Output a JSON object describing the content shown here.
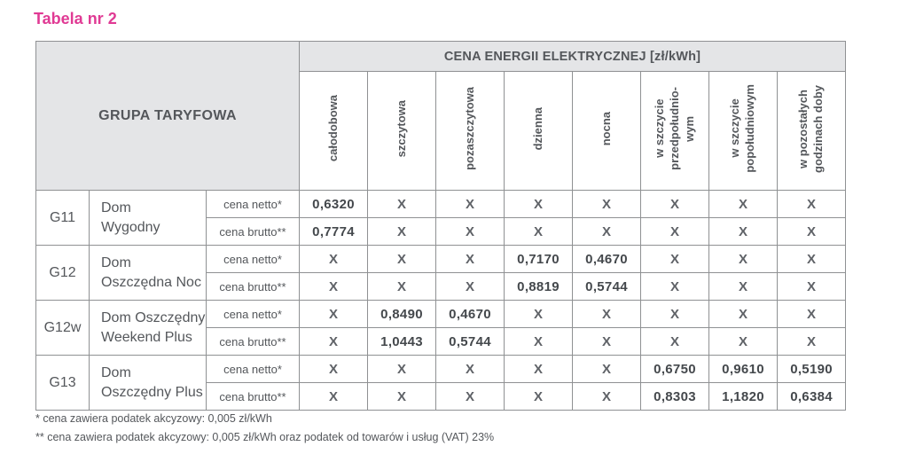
{
  "page": {
    "title": "Tabela nr 2"
  },
  "table": {
    "group_header": "GRUPA TARYFOWA",
    "price_header": "CENA ENERGII ELEKTRYCZNEJ [zł/kWh]",
    "columns": [
      "całodobowa",
      "szczytowa",
      "pozaszczytowa",
      "dzienna",
      "nocna",
      "w szczycie\nprzedpołudnio-\nwym",
      "w szczycie\npopołudniowym",
      "w pozostałych\ngodzinach doby"
    ],
    "groups": [
      {
        "code": "G11",
        "name": "Dom\nWygodny",
        "rows": [
          {
            "label": "cena netto*",
            "values": [
              "0,6320",
              "X",
              "X",
              "X",
              "X",
              "X",
              "X",
              "X"
            ]
          },
          {
            "label": "cena brutto**",
            "values": [
              "0,7774",
              "X",
              "X",
              "X",
              "X",
              "X",
              "X",
              "X"
            ]
          }
        ]
      },
      {
        "code": "G12",
        "name": "Dom\nOszczędna Noc",
        "rows": [
          {
            "label": "cena netto*",
            "values": [
              "X",
              "X",
              "X",
              "0,7170",
              "0,4670",
              "X",
              "X",
              "X"
            ]
          },
          {
            "label": "cena brutto**",
            "values": [
              "X",
              "X",
              "X",
              "0,8819",
              "0,5744",
              "X",
              "X",
              "X"
            ]
          }
        ]
      },
      {
        "code": "G12w",
        "name": "Dom Oszczędny\nWeekend Plus",
        "rows": [
          {
            "label": "cena netto*",
            "values": [
              "X",
              "0,8490",
              "0,4670",
              "X",
              "X",
              "X",
              "X",
              "X"
            ]
          },
          {
            "label": "cena brutto**",
            "values": [
              "X",
              "1,0443",
              "0,5744",
              "X",
              "X",
              "X",
              "X",
              "X"
            ]
          }
        ]
      },
      {
        "code": "G13",
        "name": "Dom\nOszczędny Plus",
        "rows": [
          {
            "label": "cena netto*",
            "values": [
              "X",
              "X",
              "X",
              "X",
              "X",
              "0,6750",
              "0,9610",
              "0,5190"
            ]
          },
          {
            "label": "cena brutto**",
            "values": [
              "X",
              "X",
              "X",
              "X",
              "X",
              "0,8303",
              "1,1820",
              "0,6384"
            ]
          }
        ]
      }
    ]
  },
  "footnotes": [
    "* cena zawiera podatek akcyzowy: 0,005 zł/kWh",
    "** cena zawiera podatek akcyzowy: 0,005 zł/kWh oraz podatek od towarów i usług (VAT) 23%"
  ],
  "colors": {
    "accent_pink": "#e03a94",
    "header_bg": "#e4e5e7",
    "border_gray": "#8f9193",
    "text_gray": "#54575b"
  }
}
